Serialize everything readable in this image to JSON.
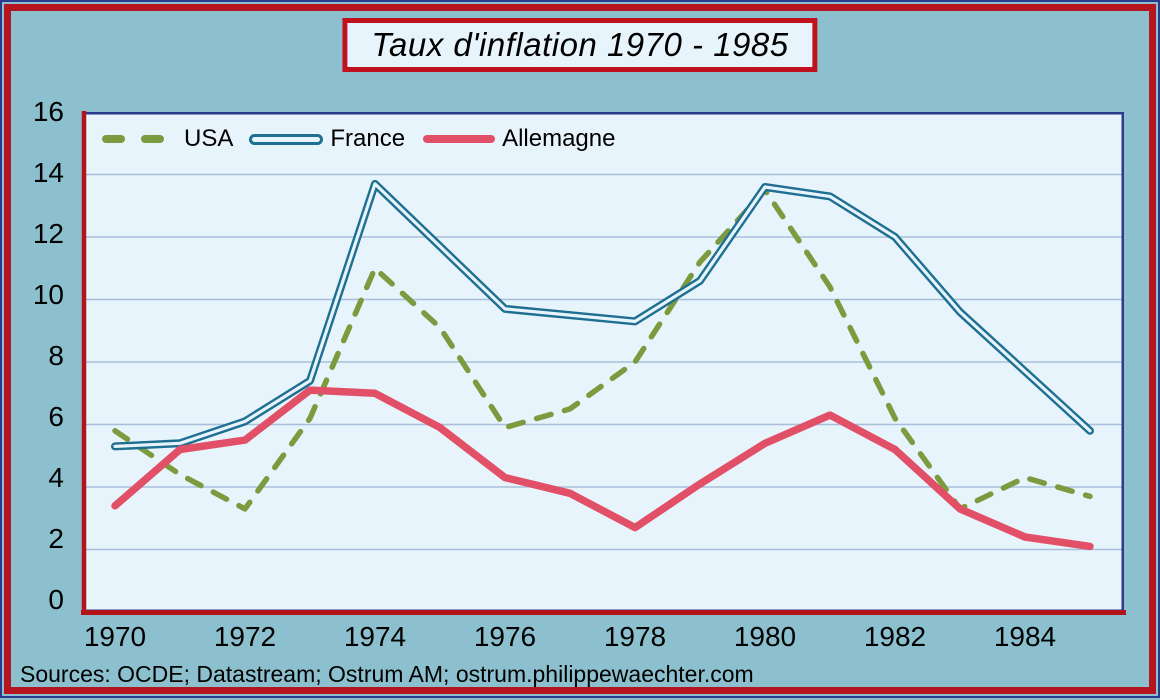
{
  "title": "Taux d'inflation 1970 - 1985",
  "source": "Sources: OCDE; Datastream; Ostrum AM; ostrum.philippewaechter.com",
  "colors": {
    "page_bg": "#8CC0CE",
    "plot_bg": "#E8F4FB",
    "grid": "#A8BEDC",
    "frame_navy": "#2A3A8C",
    "axis_red": "#B2141C",
    "outer_border_red": "#B5151E",
    "title_border_red": "#C0121E",
    "usa": "#7C9B3E",
    "france": "#1E6F92",
    "allemagne": "#E25068"
  },
  "chart_data": {
    "type": "line",
    "title": "Taux d'inflation 1970 - 1985",
    "xlabel": "",
    "ylabel": "",
    "x": [
      1970,
      1971,
      1972,
      1973,
      1974,
      1975,
      1976,
      1977,
      1978,
      1979,
      1980,
      1981,
      1982,
      1983,
      1984,
      1985
    ],
    "x_ticks": [
      "1970",
      "1972",
      "1974",
      "1976",
      "1978",
      "1980",
      "1982",
      "1984"
    ],
    "y_ticks": [
      "16",
      "14",
      "12",
      "10",
      "8",
      "6",
      "4",
      "2",
      "0"
    ],
    "ylim": [
      0,
      16
    ],
    "grid": true,
    "legend_position": "top-left-inside",
    "series": [
      {
        "name": "USA",
        "style": "dashed",
        "color": "#7C9B3E",
        "values": [
          5.8,
          4.4,
          3.3,
          6.2,
          11.0,
          9.1,
          5.9,
          6.5,
          8.0,
          11.2,
          13.5,
          10.4,
          6.2,
          3.3,
          4.3,
          3.7
        ]
      },
      {
        "name": "France",
        "style": "double-line",
        "color": "#1E6F92",
        "values": [
          5.3,
          5.4,
          6.1,
          7.4,
          13.7,
          11.7,
          9.7,
          9.5,
          9.3,
          10.6,
          13.6,
          13.3,
          12.0,
          9.6,
          7.7,
          5.8
        ]
      },
      {
        "name": "Allemagne",
        "style": "solid-thick",
        "color": "#E25068",
        "values": [
          3.4,
          5.2,
          5.5,
          7.1,
          7.0,
          5.9,
          4.3,
          3.8,
          2.7,
          4.1,
          5.4,
          6.3,
          5.2,
          3.3,
          2.4,
          2.1
        ]
      }
    ]
  },
  "legend": {
    "items": [
      {
        "label": "USA"
      },
      {
        "label": "France"
      },
      {
        "label": "Allemagne"
      }
    ]
  }
}
